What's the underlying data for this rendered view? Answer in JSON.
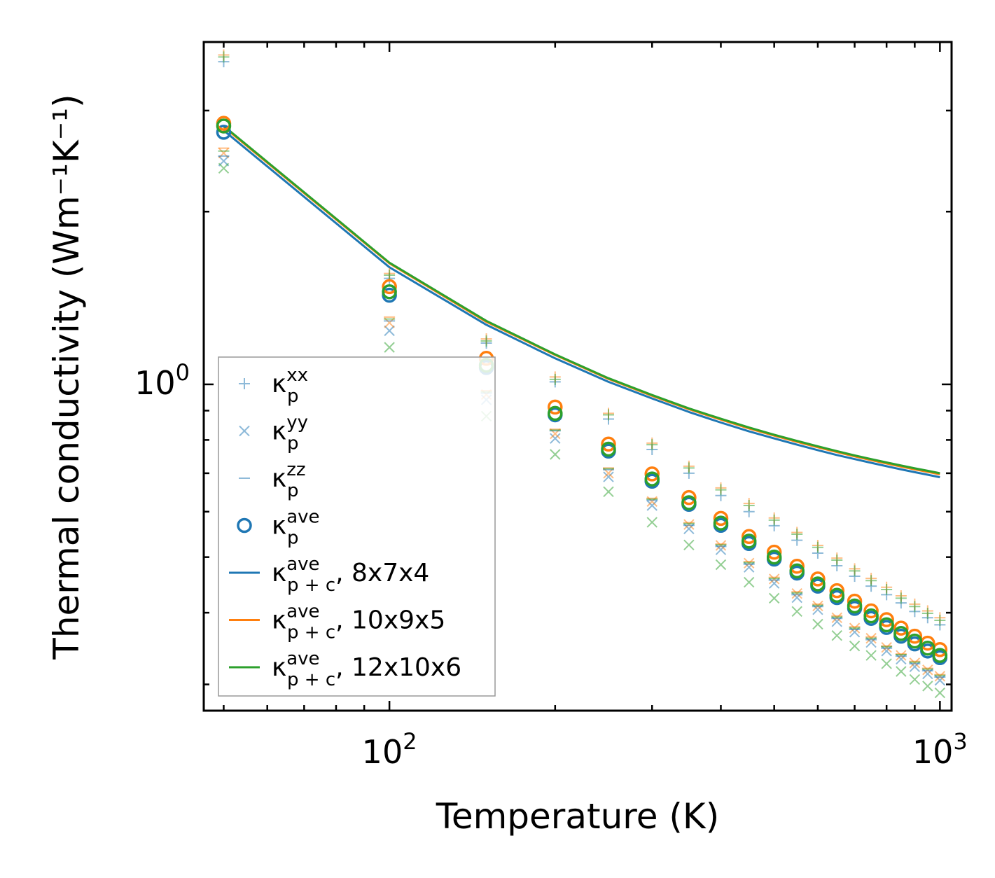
{
  "chart_data": {
    "type": "scatter",
    "xscale": "log",
    "yscale": "log",
    "xlabel": "Temperature (K)",
    "ylabel": "Thermal conductivity (Wm⁻¹K⁻¹)",
    "xlim": [
      46,
      1050
    ],
    "ylim": [
      0.27,
      3.95
    ],
    "xticks": [
      {
        "value": 100,
        "base": "10",
        "exp": "2"
      },
      {
        "value": 1000,
        "base": "10",
        "exp": "3"
      }
    ],
    "yticks": [
      {
        "value": 1.0,
        "base": "10",
        "exp": "0"
      }
    ],
    "x": [
      50,
      100,
      150,
      200,
      250,
      300,
      350,
      400,
      450,
      500,
      550,
      600,
      650,
      700,
      750,
      800,
      850,
      900,
      950,
      1000
    ],
    "series": [
      {
        "name": "kp_xx_8x7x4",
        "marker": "plus",
        "color": "#1f77b4",
        "alpha": 0.5,
        "values": [
          3.65,
          1.53,
          1.18,
          1.01,
          0.87,
          0.77,
          0.7,
          0.64,
          0.6,
          0.567,
          0.535,
          0.508,
          0.483,
          0.463,
          0.445,
          0.43,
          0.416,
          0.402,
          0.392,
          0.381
        ]
      },
      {
        "name": "kp_xx_10x9x5",
        "marker": "plus",
        "color": "#ff7f0e",
        "alpha": 0.5,
        "values": [
          3.75,
          1.56,
          1.2,
          1.03,
          0.89,
          0.79,
          0.72,
          0.66,
          0.62,
          0.585,
          0.552,
          0.524,
          0.498,
          0.477,
          0.459,
          0.443,
          0.428,
          0.414,
          0.403,
          0.392
        ]
      },
      {
        "name": "kp_xx_12x10x6",
        "marker": "plus",
        "color": "#2ca02c",
        "alpha": 0.5,
        "values": [
          3.72,
          1.55,
          1.19,
          1.02,
          0.885,
          0.785,
          0.715,
          0.655,
          0.615,
          0.58,
          0.548,
          0.52,
          0.494,
          0.473,
          0.455,
          0.439,
          0.424,
          0.41,
          0.399,
          0.388
        ]
      },
      {
        "name": "kp_yy_8x7x4",
        "marker": "x",
        "color": "#1f77b4",
        "alpha": 0.5,
        "values": [
          2.45,
          1.24,
          0.94,
          0.805,
          0.69,
          0.615,
          0.56,
          0.515,
          0.48,
          0.45,
          0.425,
          0.405,
          0.386,
          0.37,
          0.355,
          0.343,
          0.332,
          0.322,
          0.313,
          0.305
        ]
      },
      {
        "name": "kp_yy_10x9x5",
        "marker": "x",
        "color": "#ff7f0e",
        "alpha": 0.5,
        "values": [
          2.53,
          1.28,
          0.96,
          0.82,
          0.7,
          0.625,
          0.57,
          0.524,
          0.488,
          0.458,
          0.432,
          0.411,
          0.392,
          0.376,
          0.361,
          0.348,
          0.337,
          0.327,
          0.318,
          0.31
        ]
      },
      {
        "name": "kp_yy_12x10x6",
        "marker": "x",
        "color": "#2ca02c",
        "alpha": 0.5,
        "values": [
          2.38,
          1.16,
          0.88,
          0.755,
          0.65,
          0.575,
          0.525,
          0.485,
          0.452,
          0.424,
          0.402,
          0.382,
          0.365,
          0.35,
          0.337,
          0.326,
          0.316,
          0.306,
          0.298,
          0.29
        ]
      },
      {
        "name": "kp_zz_8x7x4",
        "marker": "hline",
        "color": "#1f77b4",
        "alpha": 0.5,
        "values": [
          2.5,
          1.29,
          0.965,
          0.83,
          0.71,
          0.628,
          0.568,
          0.522,
          0.486,
          0.456,
          0.43,
          0.41,
          0.391,
          0.374,
          0.359,
          0.347,
          0.336,
          0.326,
          0.317,
          0.309
        ]
      },
      {
        "name": "kp_zz_10x9x5",
        "marker": "hline",
        "color": "#ff7f0e",
        "alpha": 0.5,
        "values": [
          2.58,
          1.31,
          0.975,
          0.835,
          0.715,
          0.633,
          0.574,
          0.527,
          0.491,
          0.461,
          0.435,
          0.414,
          0.395,
          0.378,
          0.363,
          0.35,
          0.339,
          0.329,
          0.32,
          0.312
        ]
      },
      {
        "name": "kp_zz_12x10x6",
        "marker": "hline",
        "color": "#2ca02c",
        "alpha": 0.5,
        "values": [
          2.55,
          1.3,
          0.97,
          0.832,
          0.713,
          0.631,
          0.572,
          0.525,
          0.489,
          0.459,
          0.433,
          0.412,
          0.393,
          0.376,
          0.361,
          0.349,
          0.338,
          0.328,
          0.319,
          0.311
        ]
      },
      {
        "name": "kp_ave_8x7x4",
        "marker": "circle",
        "color": "#1f77b4",
        "alpha": 1,
        "values": [
          2.75,
          1.43,
          1.07,
          0.885,
          0.765,
          0.678,
          0.618,
          0.568,
          0.528,
          0.496,
          0.469,
          0.445,
          0.425,
          0.407,
          0.391,
          0.377,
          0.364,
          0.353,
          0.343,
          0.334
        ]
      },
      {
        "name": "kp_ave_10x9x5",
        "marker": "circle",
        "color": "#ff7f0e",
        "alpha": 1,
        "values": [
          2.85,
          1.48,
          1.11,
          0.913,
          0.787,
          0.698,
          0.635,
          0.584,
          0.543,
          0.51,
          0.482,
          0.458,
          0.437,
          0.419,
          0.403,
          0.389,
          0.376,
          0.364,
          0.354,
          0.345
        ]
      },
      {
        "name": "kp_ave_12x10x6",
        "marker": "circle",
        "color": "#2ca02c",
        "alpha": 1,
        "values": [
          2.82,
          1.45,
          1.08,
          0.89,
          0.771,
          0.684,
          0.622,
          0.573,
          0.533,
          0.5,
          0.473,
          0.449,
          0.429,
          0.411,
          0.395,
          0.381,
          0.368,
          0.357,
          0.347,
          0.337
        ]
      },
      {
        "name": "kpc_ave_8x7x4",
        "marker": "line",
        "color": "#1f77b4",
        "alpha": 1,
        "values": [
          2.77,
          1.6,
          1.27,
          1.11,
          1.01,
          0.945,
          0.895,
          0.858,
          0.828,
          0.805,
          0.785,
          0.768,
          0.753,
          0.741,
          0.73,
          0.72,
          0.711,
          0.703,
          0.696,
          0.689
        ]
      },
      {
        "name": "kpc_ave_10x9x5",
        "marker": "line",
        "color": "#ff7f0e",
        "alpha": 1,
        "values": [
          2.81,
          1.625,
          1.285,
          1.125,
          1.022,
          0.955,
          0.905,
          0.868,
          0.838,
          0.814,
          0.794,
          0.777,
          0.762,
          0.749,
          0.738,
          0.728,
          0.719,
          0.711,
          0.704,
          0.697
        ]
      },
      {
        "name": "kpc_ave_12x10x6",
        "marker": "line",
        "color": "#2ca02c",
        "alpha": 1,
        "values": [
          2.82,
          1.63,
          1.29,
          1.128,
          1.025,
          0.958,
          0.908,
          0.871,
          0.841,
          0.817,
          0.797,
          0.78,
          0.765,
          0.752,
          0.741,
          0.731,
          0.722,
          0.714,
          0.707,
          0.7
        ]
      }
    ],
    "legend": {
      "placement": "lower-left",
      "entries": [
        {
          "marker": "plus",
          "color": "#1f77b4",
          "alpha": 0.5,
          "sym": "κ",
          "sub": "p",
          "sup": "xx",
          "suffix": ""
        },
        {
          "marker": "x",
          "color": "#1f77b4",
          "alpha": 0.5,
          "sym": "κ",
          "sub": "p",
          "sup": "yy",
          "suffix": ""
        },
        {
          "marker": "hline",
          "color": "#1f77b4",
          "alpha": 0.5,
          "sym": "κ",
          "sub": "p",
          "sup": "zz",
          "suffix": ""
        },
        {
          "marker": "circle",
          "color": "#1f77b4",
          "alpha": 1,
          "sym": "κ",
          "sub": "p",
          "sup": "ave",
          "suffix": ""
        },
        {
          "marker": "line",
          "color": "#1f77b4",
          "alpha": 1,
          "sym": "κ",
          "sub": "p + c",
          "sup": "ave",
          "suffix": ", 8x7x4"
        },
        {
          "marker": "line",
          "color": "#ff7f0e",
          "alpha": 1,
          "sym": "κ",
          "sub": "p + c",
          "sup": "ave",
          "suffix": ", 10x9x5"
        },
        {
          "marker": "line",
          "color": "#2ca02c",
          "alpha": 1,
          "sym": "κ",
          "sub": "p + c",
          "sup": "ave",
          "suffix": ", 12x10x6"
        }
      ]
    }
  }
}
